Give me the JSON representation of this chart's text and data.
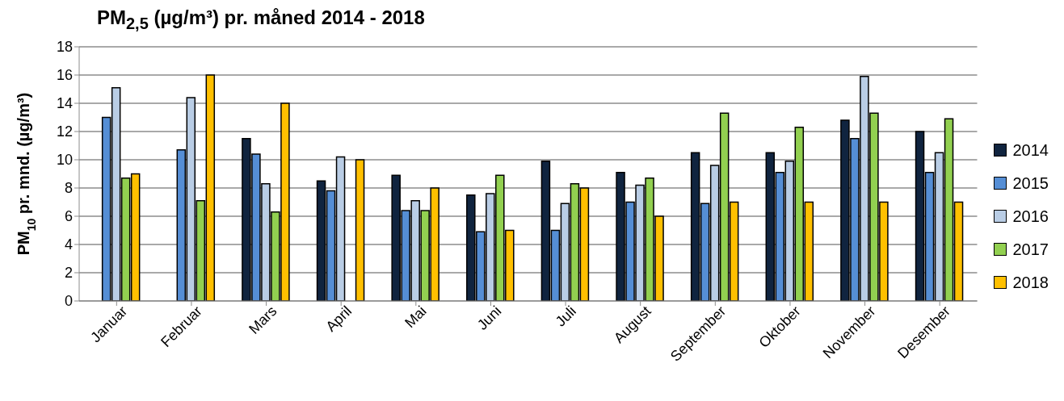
{
  "chart_data": {
    "type": "bar",
    "title": "PM$_{2,5}$ (µg/m³) pr. måned 2014 - 2018",
    "ylabel": "PM$_{10}$ pr. mnd. (µg/m³)",
    "categories": [
      "Januar",
      "Februar",
      "Mars",
      "April",
      "Mai",
      "Juni",
      "Juli",
      "August",
      "September",
      "Oktober",
      "November",
      "Desember"
    ],
    "series": [
      {
        "name": "2014",
        "color": "#10243f",
        "values": [
          null,
          null,
          11.5,
          8.5,
          8.9,
          7.5,
          9.9,
          9.1,
          10.5,
          10.5,
          12.8,
          12.0
        ]
      },
      {
        "name": "2015",
        "color": "#558ed5",
        "values": [
          13.0,
          10.7,
          10.4,
          7.8,
          6.4,
          4.9,
          5.0,
          7.0,
          6.9,
          9.1,
          11.5,
          9.1
        ]
      },
      {
        "name": "2016",
        "color": "#b9cde5",
        "values": [
          15.1,
          14.4,
          8.3,
          10.2,
          7.1,
          7.6,
          6.9,
          8.2,
          9.6,
          9.9,
          15.9,
          10.5
        ]
      },
      {
        "name": "2017",
        "color": "#92d050",
        "values": [
          8.7,
          7.1,
          6.3,
          null,
          6.4,
          8.9,
          8.3,
          8.7,
          13.3,
          12.3,
          13.3,
          12.9
        ]
      },
      {
        "name": "2018",
        "color": "#ffc000",
        "values": [
          9.0,
          16.0,
          14.0,
          10.0,
          8.0,
          5.0,
          8.0,
          6.0,
          7.0,
          7.0,
          7.0,
          7.0
        ]
      }
    ],
    "ylim": [
      0,
      18
    ],
    "yticks": [
      0,
      2,
      4,
      6,
      8,
      10,
      12,
      14,
      16,
      18
    ],
    "grid": "y",
    "legend": "right"
  }
}
